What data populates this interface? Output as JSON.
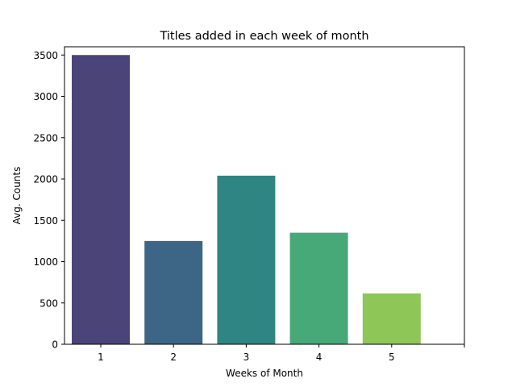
{
  "chart_data": {
    "type": "bar",
    "title": "Titles added in each week of month",
    "xlabel": "Weeks of Month",
    "ylabel": "Avg. Counts",
    "categories": [
      "1",
      "2",
      "3",
      "4",
      "5"
    ],
    "values": [
      3500,
      1250,
      2040,
      1350,
      615
    ],
    "colors": [
      "#4b4479",
      "#3d6586",
      "#2f8581",
      "#47a878",
      "#8fc658"
    ],
    "ylim": [
      0,
      3600
    ],
    "yticks": [
      0,
      500,
      1000,
      1500,
      2000,
      2500,
      3000,
      3500
    ],
    "extra_x_tick": true,
    "grid": false,
    "legend": "none"
  }
}
